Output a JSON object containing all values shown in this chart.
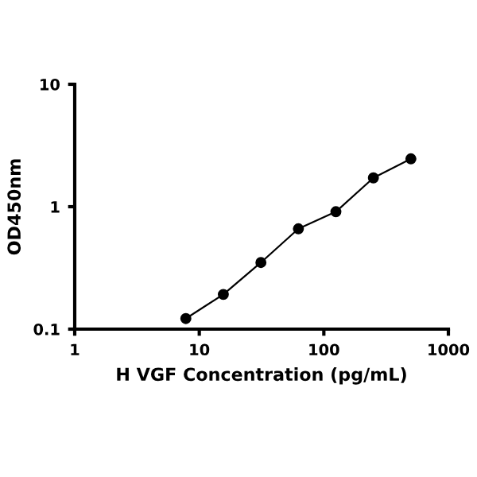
{
  "chart_data": {
    "type": "scatter",
    "xlabel": "H VGF Concentration (pg/mL)",
    "ylabel": "OD450nm",
    "log": "xy",
    "x": [
      7.8,
      15.6,
      31.25,
      62.5,
      125,
      250,
      500
    ],
    "series": [
      {
        "color": "#000000",
        "marker": "circle",
        "values": [
          0.122,
          0.192,
          0.35,
          0.66,
          0.91,
          1.72,
          2.46
        ]
      },
      {
        "type": "line",
        "color": "#000000",
        "marker": "none",
        "values": [
          0.122,
          0.192,
          0.35,
          0.66,
          0.91,
          1.72,
          2.46
        ]
      }
    ],
    "xlim": [
      1,
      1000
    ],
    "ylim": [
      0.1,
      10
    ],
    "xticks": [
      1,
      10,
      100,
      1000
    ],
    "yticks": [
      0.1,
      1,
      10
    ],
    "grid": false,
    "legend": false
  }
}
